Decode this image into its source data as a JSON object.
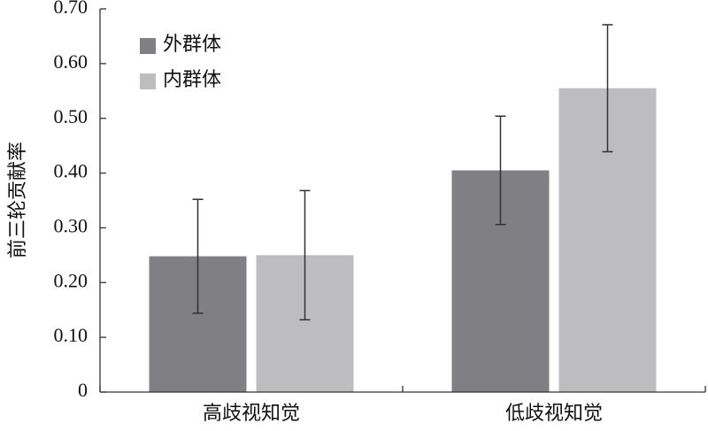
{
  "chart_data": {
    "type": "bar",
    "y_label": "前三轮贡献率",
    "categories": [
      "高歧视知觉",
      "低歧视知觉"
    ],
    "series": [
      {
        "name": "外群体",
        "color": "#807f84",
        "values": [
          0.248,
          0.405
        ],
        "errors": [
          0.104,
          0.099
        ]
      },
      {
        "name": "内群体",
        "color": "#bdbcbf",
        "values": [
          0.25,
          0.555
        ],
        "errors": [
          0.118,
          0.116
        ]
      }
    ],
    "ylim": [
      0,
      0.7
    ],
    "yticks": [
      0,
      {
        "value": 0.1,
        "label": "0.10"
      },
      {
        "value": 0.2,
        "label": "0.20"
      },
      {
        "value": 0.3,
        "label": "0.30"
      },
      {
        "value": 0.4,
        "label": "0.40"
      },
      {
        "value": 0.5,
        "label": "0.50"
      },
      {
        "value": 0.6,
        "label": "0.60"
      },
      {
        "value": 0.7,
        "label": "0.70"
      }
    ],
    "legend": "upper-left",
    "grid": false
  }
}
